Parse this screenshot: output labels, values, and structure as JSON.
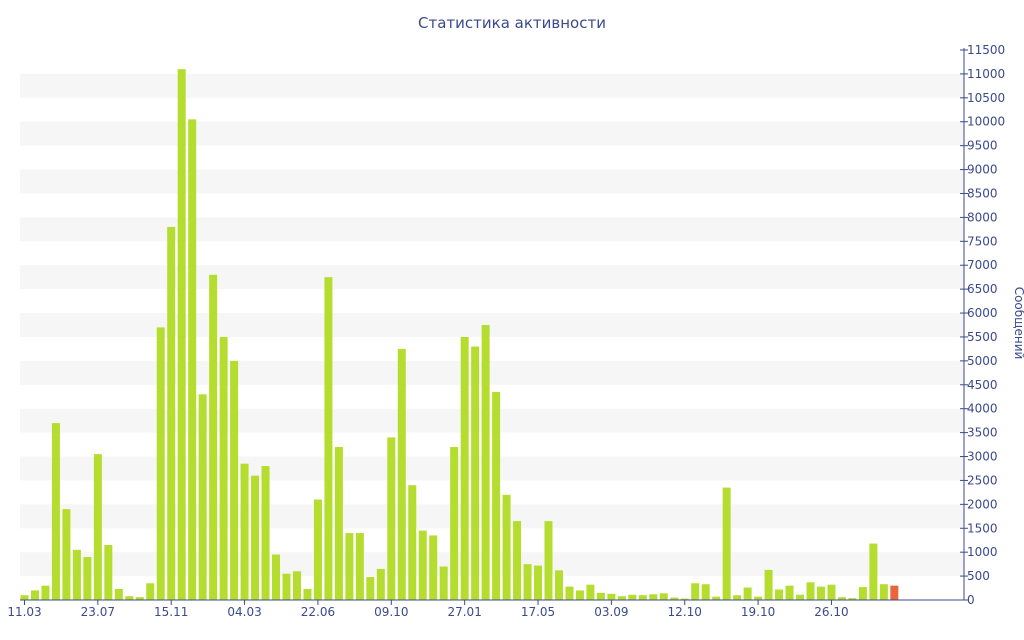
{
  "chart_data": {
    "type": "bar",
    "title": "Статистика активности",
    "xlabel": "",
    "ylabel": "Сообщений",
    "ylim": [
      0,
      11500
    ],
    "y_ticks": [
      0,
      500,
      1000,
      1500,
      2000,
      2500,
      3000,
      3500,
      4000,
      4500,
      5000,
      5500,
      6000,
      6500,
      7000,
      7500,
      8000,
      8500,
      9000,
      9500,
      10000,
      10500,
      11000,
      11500
    ],
    "grid": "alternating horizontal bands",
    "x_tick_labels": [
      "11.03",
      "23.07",
      "15.11",
      "04.03",
      "22.06",
      "09.10",
      "27.01",
      "17.05",
      "03.09",
      "12.10",
      "19.10",
      "26.10"
    ],
    "x_tick_bar_index": [
      0,
      7,
      14,
      21,
      28,
      35,
      42,
      49,
      56,
      63,
      70,
      77
    ],
    "series": [
      {
        "color": "#b5dd2f",
        "highlight_color": "#e8673a",
        "highlight_index": 83,
        "values": [
          100,
          200,
          300,
          3700,
          1900,
          1050,
          900,
          3050,
          1150,
          230,
          80,
          60,
          350,
          5700,
          7800,
          11100,
          10050,
          4300,
          6800,
          5500,
          5000,
          2850,
          2600,
          2800,
          950,
          550,
          600,
          230,
          2100,
          6750,
          3200,
          1400,
          1400,
          480,
          650,
          3400,
          5250,
          2400,
          1450,
          1350,
          700,
          3200,
          5500,
          5300,
          5750,
          4350,
          2200,
          1650,
          750,
          720,
          1650,
          620,
          280,
          200,
          320,
          150,
          130,
          80,
          110,
          100,
          120,
          140,
          50,
          30,
          350,
          330,
          70,
          2350,
          100,
          260,
          70,
          630,
          220,
          300,
          110,
          370,
          280,
          320,
          60,
          40,
          270,
          1180,
          330,
          300
        ]
      }
    ]
  }
}
